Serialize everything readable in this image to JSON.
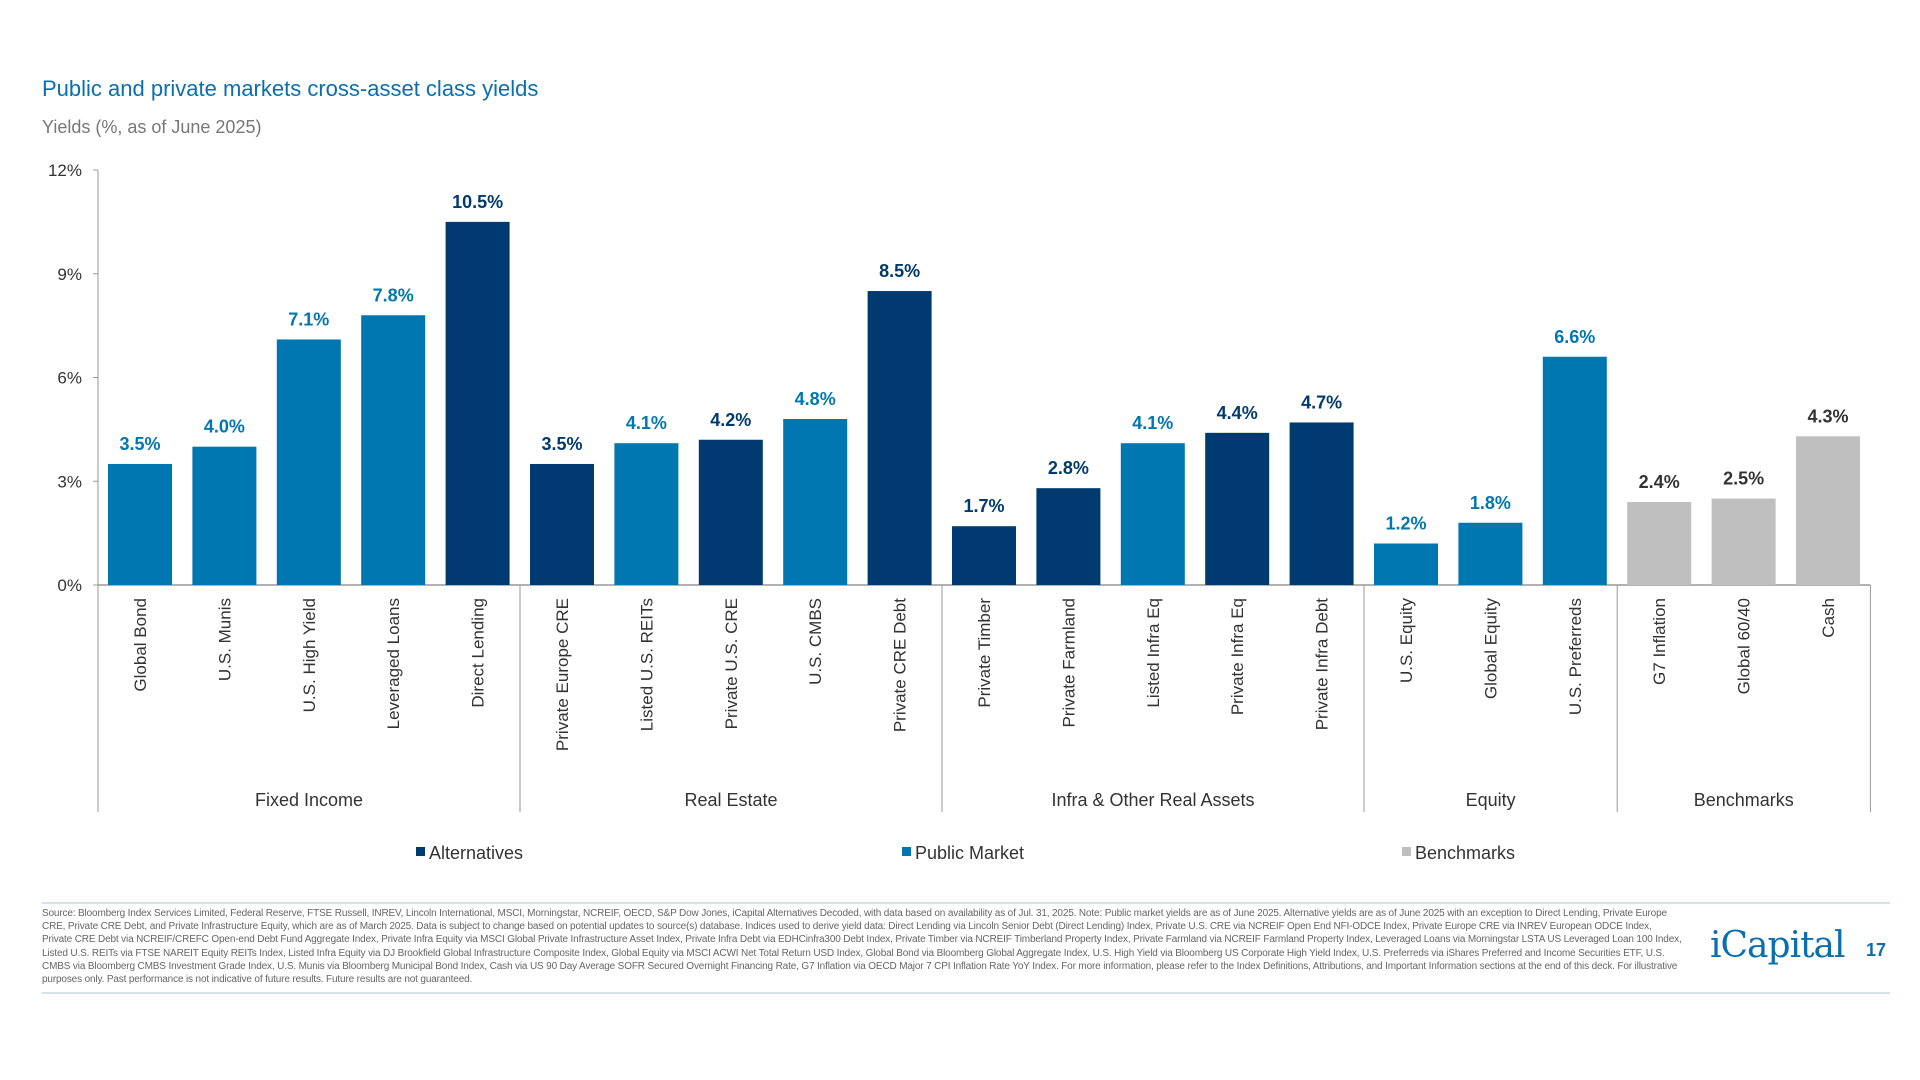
{
  "header": {
    "title": "Public and private markets cross-asset class yields",
    "subtitle": "Yields (%, as of June 2025)"
  },
  "colors": {
    "Alternatives": "#003a70",
    "Public Market": "#0077b0",
    "Benchmarks": "#bfbfbf",
    "title": "#0a6fae"
  },
  "chart_data": {
    "type": "bar",
    "title": "Public and private markets cross-asset class yields",
    "subtitle": "Yields (%, as of June 2025)",
    "ylim": [
      0,
      12
    ],
    "yticks": [
      0,
      3,
      6,
      9,
      12
    ],
    "ytick_labels": [
      "0%",
      "3%",
      "6%",
      "9%",
      "12%"
    ],
    "grid": false,
    "legend_position": "bottom",
    "legend": [
      "Alternatives",
      "Public Market",
      "Benchmarks"
    ],
    "categories": [
      "Global Bond",
      "U.S. Munis",
      "U.S. High Yield",
      "Leveraged Loans",
      "Direct Lending",
      "Private Europe CRE",
      "Listed U.S. REITs",
      "Private U.S. CRE",
      "U.S. CMBS",
      "Private CRE Debt",
      "Private Timber",
      "Private Farmland",
      "Listed Infra Eq",
      "Private Infra Eq",
      "Private Infra Debt",
      "U.S. Equity",
      "Global Equity",
      "U.S. Preferreds",
      "G7 Inflation",
      "Global 60/40",
      "Cash"
    ],
    "values": [
      3.5,
      4.0,
      7.1,
      7.8,
      10.5,
      3.5,
      4.1,
      4.2,
      4.8,
      8.5,
      1.7,
      2.8,
      4.1,
      4.4,
      4.7,
      1.2,
      1.8,
      6.6,
      2.4,
      2.5,
      4.3
    ],
    "data_labels": [
      "3.5%",
      "4.0%",
      "7.1%",
      "7.8%",
      "10.5%",
      "3.5%",
      "4.1%",
      "4.2%",
      "4.8%",
      "8.5%",
      "1.7%",
      "2.8%",
      "4.1%",
      "4.4%",
      "4.7%",
      "1.2%",
      "1.8%",
      "6.6%",
      "2.4%",
      "2.5%",
      "4.3%"
    ],
    "series_type": [
      "Public Market",
      "Public Market",
      "Public Market",
      "Public Market",
      "Alternatives",
      "Alternatives",
      "Public Market",
      "Alternatives",
      "Public Market",
      "Alternatives",
      "Alternatives",
      "Alternatives",
      "Public Market",
      "Alternatives",
      "Alternatives",
      "Public Market",
      "Public Market",
      "Public Market",
      "Benchmarks",
      "Benchmarks",
      "Benchmarks"
    ],
    "groups": [
      {
        "name": "Fixed Income",
        "count": 5
      },
      {
        "name": "Real Estate",
        "count": 5
      },
      {
        "name": "Infra & Other Real Assets",
        "count": 5
      },
      {
        "name": "Equity",
        "count": 3
      },
      {
        "name": "Benchmarks",
        "count": 3
      }
    ]
  },
  "footer": {
    "source": "Source: Bloomberg Index Services Limited, Federal Reserve, FTSE Russell, INREV, Lincoln International, MSCI, Morningstar, NCREIF, OECD, S&P Dow Jones, iCapital Alternatives Decoded, with data based on availability as of Jul. 31, 2025. Note: Public market yields are as of June 2025. Alternative yields are as of June 2025 with an exception to Direct Lending, Private Europe CRE, Private CRE Debt, and Private Infrastructure Equity, which are as of March 2025. Data is subject to change based on potential updates to source(s) database. Indices used to derive yield data: Direct Lending via Lincoln Senior Debt (Direct Lending) Index, Private U.S. CRE via NCREIF Open End NFI-ODCE Index, Private Europe CRE via INREV European ODCE Index, Private CRE Debt via NCREIF/CREFC Open-end Debt Fund Aggregate Index, Private Infra Equity via MSCI Global Private Infrastructure Asset Index, Private Infra Debt via EDHCinfra300 Debt Index, Private Timber via NCREIF Timberland Property Index, Private Farmland via NCREIF Farmland Property Index, Leveraged Loans via Morningstar LSTA US Leveraged Loan 100 Index, Listed U.S. REITs via FTSE NAREIT Equity REITs Index, Listed Infra Equity via DJ Brookfield Global Infrastructure Composite Index, Global Equity via MSCI ACWI Net Total Return USD Index, Global Bond via Bloomberg Global Aggregate Index, U.S. High Yield via Bloomberg US Corporate High Yield Index, U.S. Preferreds via iShares Preferred and Income Securities ETF, U.S. CMBS via Bloomberg CMBS Investment Grade Index, U.S. Munis via Bloomberg Municipal Bond Index, Cash via US 90 Day Average SOFR Secured Overnight Financing Rate, G7 Inflation via OECD Major 7 CPI Inflation Rate YoY Index. For more information, please refer to the Index Definitions, Attributions, and Important Information sections at the end of this deck. For illustrative purposes only. Past performance is not indicative of future results. Future results are not guaranteed.",
    "logo": "iCapital",
    "page_number": "17"
  }
}
